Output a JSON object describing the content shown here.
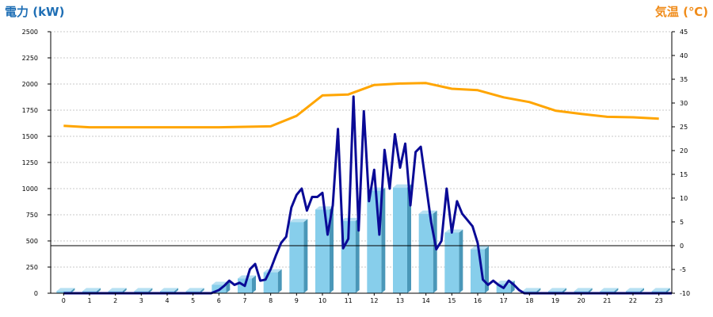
{
  "chart_data": {
    "type": "bar+line",
    "title_left": "電力 (kW)",
    "title_right": "気温 (℃)",
    "left_axis": {
      "min": 0,
      "max": 2500,
      "ticks": [
        0,
        250,
        500,
        750,
        1000,
        1250,
        1500,
        1750,
        2000,
        2250,
        2500
      ]
    },
    "right_axis": {
      "min": -10,
      "max": 45,
      "ticks": [
        -10,
        -5,
        0,
        5,
        10,
        15,
        20,
        25,
        30,
        35,
        40,
        45
      ]
    },
    "categories": [
      "0",
      "1",
      "2",
      "3",
      "4",
      "5",
      "6",
      "7",
      "8",
      "9",
      "10",
      "11",
      "12",
      "13",
      "14",
      "15",
      "16",
      "17",
      "18",
      "19",
      "20",
      "21",
      "22",
      "23"
    ],
    "bars": [
      20,
      20,
      20,
      20,
      20,
      20,
      80,
      140,
      200,
      680,
      800,
      690,
      980,
      1010,
      760,
      580,
      420,
      90,
      20,
      20,
      20,
      20,
      20,
      20
    ],
    "power_line": {
      "x": [
        0,
        5.7,
        6,
        6.2,
        6.4,
        6.6,
        6.8,
        7.0,
        7.2,
        7.4,
        7.6,
        7.8,
        8.0,
        8.2,
        8.4,
        8.6,
        8.8,
        9.0,
        9.2,
        9.4,
        9.6,
        9.8,
        10.0,
        10.2,
        10.4,
        10.6,
        10.8,
        11.0,
        11.2,
        11.4,
        11.6,
        11.8,
        12.0,
        12.2,
        12.4,
        12.6,
        12.8,
        13.0,
        13.2,
        13.4,
        13.6,
        13.8,
        14.0,
        14.2,
        14.4,
        14.6,
        14.8,
        15.0,
        15.2,
        15.4,
        15.6,
        15.8,
        16.0,
        16.2,
        16.4,
        16.6,
        16.8,
        17.0,
        17.2,
        17.4,
        17.6,
        17.8,
        23.5
      ],
      "y": [
        0,
        0,
        30,
        70,
        120,
        80,
        100,
        70,
        230,
        280,
        120,
        130,
        230,
        360,
        480,
        540,
        820,
        940,
        1000,
        790,
        920,
        920,
        960,
        560,
        840,
        1570,
        430,
        520,
        1880,
        600,
        1740,
        880,
        1180,
        560,
        1370,
        1000,
        1520,
        1200,
        1430,
        840,
        1350,
        1400,
        1040,
        680,
        420,
        500,
        1000,
        580,
        880,
        760,
        700,
        640,
        480,
        130,
        80,
        120,
        80,
        50,
        120,
        80,
        30,
        0,
        0
      ]
    },
    "temperature_line": {
      "x": [
        0,
        1,
        2,
        3,
        4,
        5,
        6,
        7,
        8,
        9,
        10,
        11,
        12,
        13,
        14,
        15,
        16,
        17,
        18,
        19,
        20,
        21,
        22,
        23
      ],
      "y": [
        25.2,
        24.9,
        24.9,
        24.9,
        24.9,
        24.9,
        24.9,
        25,
        25.1,
        27.3,
        31.6,
        31.8,
        33.8,
        34.1,
        34.2,
        33,
        32.7,
        31.2,
        30.2,
        28.4,
        27.7,
        27.1,
        27.0,
        26.7
      ]
    }
  }
}
